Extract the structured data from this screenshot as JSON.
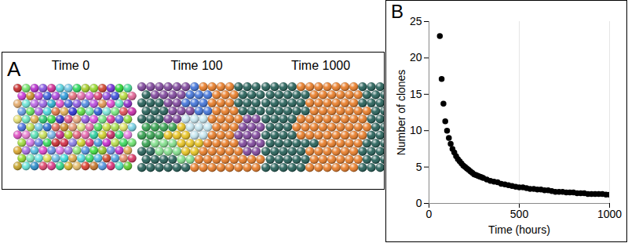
{
  "panel_a": {
    "label": "A",
    "snapshots": [
      "Time 0",
      "Time 100",
      "Time 1000"
    ]
  },
  "chart_data": {
    "panel_label": "B",
    "type": "scatter",
    "x_label": "Time (hours)",
    "y_label": "Number of clones",
    "x": [
      60,
      70,
      80,
      90,
      100,
      110,
      120,
      130,
      140,
      150,
      160,
      170,
      180,
      190,
      200,
      210,
      220,
      230,
      240,
      250,
      260,
      270,
      280,
      290,
      300,
      320,
      340,
      360,
      380,
      400,
      420,
      440,
      460,
      480,
      500,
      520,
      540,
      560,
      580,
      600,
      620,
      640,
      660,
      680,
      700,
      720,
      740,
      760,
      780,
      800,
      820,
      840,
      860,
      880,
      900,
      920,
      940,
      960,
      980,
      1000
    ],
    "values": [
      23,
      17.1,
      13.7,
      11.3,
      10.0,
      9.0,
      8.2,
      7.5,
      7.0,
      6.5,
      6.1,
      5.8,
      5.5,
      5.2,
      5.0,
      4.8,
      4.6,
      4.4,
      4.2,
      4.0,
      3.9,
      3.8,
      3.7,
      3.6,
      3.5,
      3.3,
      3.1,
      3.0,
      2.9,
      2.7,
      2.6,
      2.5,
      2.4,
      2.3,
      2.2,
      2.2,
      2.1,
      2.0,
      2.0,
      1.9,
      1.9,
      1.8,
      1.8,
      1.7,
      1.6,
      1.6,
      1.6,
      1.5,
      1.5,
      1.5,
      1.4,
      1.4,
      1.4,
      1.3,
      1.3,
      1.3,
      1.3,
      1.3,
      1.2,
      1.2
    ],
    "color": "#000000",
    "marker": "circle",
    "xlim": [
      0,
      1000
    ],
    "xticks": [
      0,
      500,
      1000
    ],
    "ylim": [
      0,
      25
    ],
    "yticks": [
      0,
      5,
      10,
      15,
      20,
      25
    ],
    "grid": "x"
  }
}
